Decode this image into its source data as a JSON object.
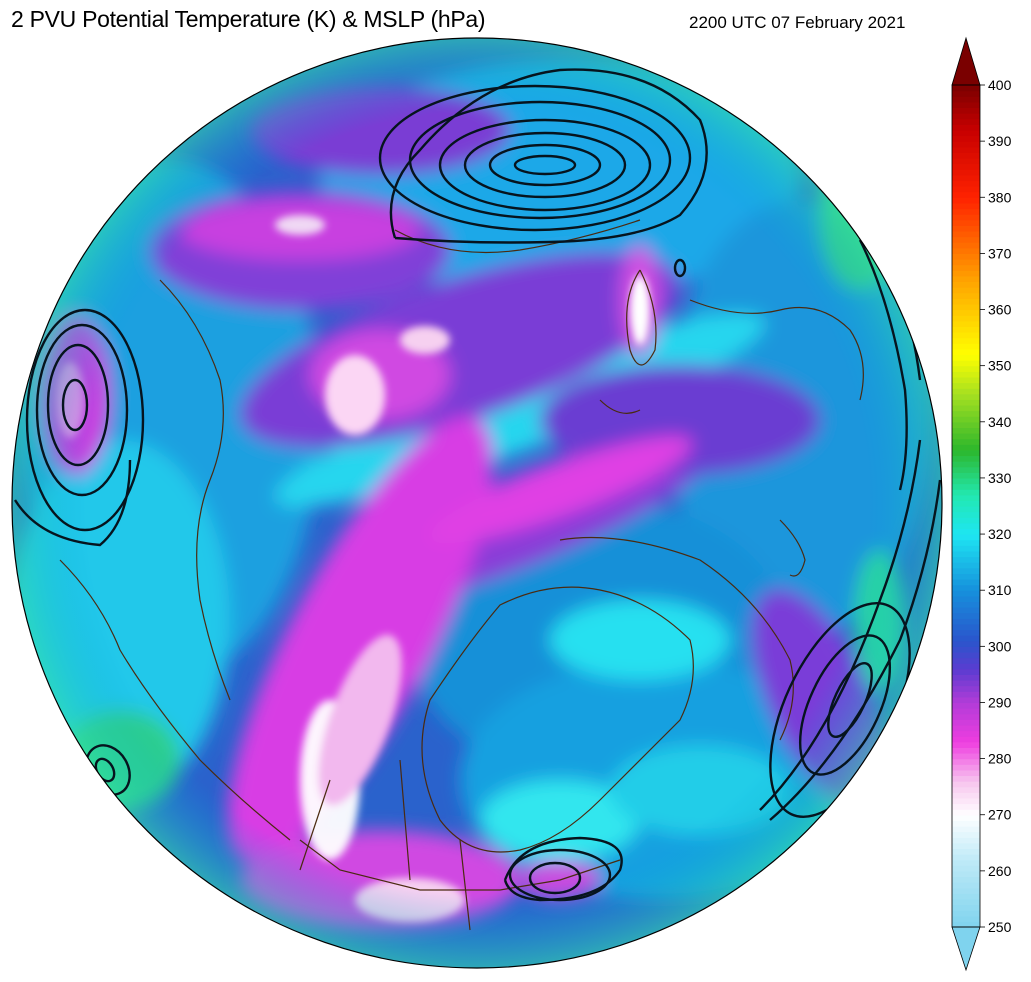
{
  "header": {
    "title": "2 PVU Potential Temperature (K) & MSLP (hPa)",
    "timestamp": "2200 UTC 07 February 2021"
  },
  "colorbar": {
    "min": 250,
    "max": 400,
    "ticks": [
      "400",
      "390",
      "380",
      "370",
      "360",
      "350",
      "340",
      "330",
      "320",
      "310",
      "300",
      "290",
      "280",
      "270",
      "260",
      "250"
    ],
    "extend": "both",
    "stops": [
      {
        "value": 250,
        "color": "#7fd3ee"
      },
      {
        "value": 262,
        "color": "#bfeaf7"
      },
      {
        "value": 270,
        "color": "#ffffff"
      },
      {
        "value": 276,
        "color": "#f7c4ee"
      },
      {
        "value": 283,
        "color": "#ee3de0"
      },
      {
        "value": 290,
        "color": "#b23cd8"
      },
      {
        "value": 296,
        "color": "#5a3cd0"
      },
      {
        "value": 301,
        "color": "#2a55cc"
      },
      {
        "value": 310,
        "color": "#1690dc"
      },
      {
        "value": 320,
        "color": "#1ee6f2"
      },
      {
        "value": 327,
        "color": "#22e8b0"
      },
      {
        "value": 335,
        "color": "#2cb72c"
      },
      {
        "value": 345,
        "color": "#a6e020"
      },
      {
        "value": 352,
        "color": "#ffff00"
      },
      {
        "value": 365,
        "color": "#ffa500"
      },
      {
        "value": 380,
        "color": "#ff2200"
      },
      {
        "value": 392,
        "color": "#c80000"
      },
      {
        "value": 400,
        "color": "#7a0000"
      }
    ],
    "under_color": "#7fd3ee",
    "over_color": "#7a0000"
  },
  "map": {
    "projection": "orthographic (north polar)",
    "contour_color": "#000000",
    "coastline_color": "#4a2a10",
    "disc_base_color": "#2a62cc"
  }
}
